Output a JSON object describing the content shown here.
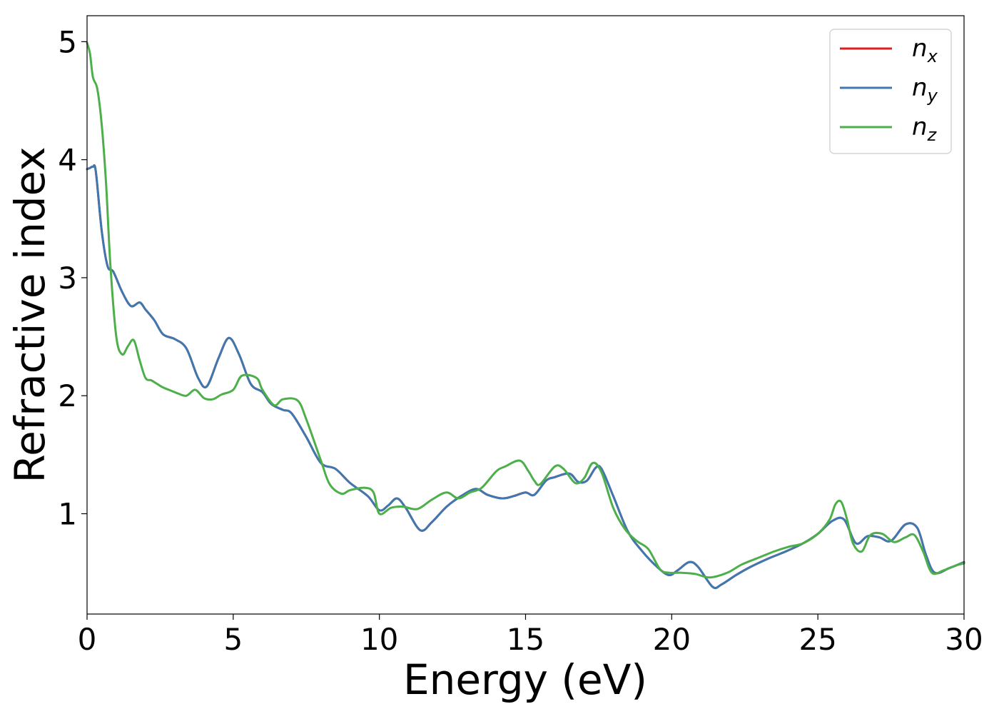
{
  "chart_data": {
    "type": "line",
    "xlabel": "Energy (eV)",
    "ylabel": "Refractive index",
    "xlim": [
      0,
      30
    ],
    "ylim": [
      0.15,
      5.22
    ],
    "xticks": [
      0,
      5,
      10,
      15,
      20,
      25,
      30
    ],
    "yticks": [
      1,
      2,
      3,
      4,
      5
    ],
    "grid": false,
    "legend_position": "top-right",
    "series": [
      {
        "name": "n",
        "subscript": "x",
        "color": "#e41a1c",
        "x": [
          0,
          0.1,
          0.2,
          0.3,
          0.5,
          0.7,
          0.9,
          1.2,
          1.5,
          1.8,
          2.0,
          2.3,
          2.6,
          3.0,
          3.4,
          3.8,
          4.1,
          4.5,
          4.85,
          5.2,
          5.6,
          6.0,
          6.3,
          6.7,
          7.0,
          7.5,
          8.0,
          8.5,
          9.0,
          9.6,
          10.0,
          10.3,
          10.6,
          10.9,
          11.4,
          11.8,
          12.3,
          12.8,
          13.3,
          13.7,
          14.2,
          14.6,
          15.0,
          15.3,
          15.7,
          16.0,
          16.5,
          16.8,
          17.1,
          17.4,
          17.6,
          18.0,
          18.5,
          19.0,
          19.5,
          19.9,
          20.2,
          20.6,
          20.9,
          21.4,
          21.7,
          22.2,
          22.7,
          23.3,
          23.9,
          24.5,
          25.0,
          25.5,
          25.9,
          26.3,
          26.7,
          27.1,
          27.5,
          28.0,
          28.4,
          28.7,
          29.0,
          29.5,
          30.0
        ],
        "y": [
          3.92,
          3.93,
          3.94,
          3.9,
          3.4,
          3.1,
          3.05,
          2.88,
          2.76,
          2.79,
          2.73,
          2.64,
          2.52,
          2.48,
          2.4,
          2.15,
          2.08,
          2.32,
          2.49,
          2.35,
          2.1,
          2.03,
          1.93,
          1.88,
          1.85,
          1.65,
          1.43,
          1.38,
          1.26,
          1.15,
          1.03,
          1.07,
          1.13,
          1.05,
          0.86,
          0.93,
          1.06,
          1.15,
          1.21,
          1.16,
          1.13,
          1.15,
          1.18,
          1.16,
          1.28,
          1.31,
          1.34,
          1.27,
          1.28,
          1.39,
          1.38,
          1.15,
          0.85,
          0.68,
          0.55,
          0.48,
          0.52,
          0.59,
          0.55,
          0.38,
          0.4,
          0.48,
          0.55,
          0.62,
          0.68,
          0.75,
          0.83,
          0.94,
          0.95,
          0.75,
          0.81,
          0.8,
          0.77,
          0.91,
          0.88,
          0.65,
          0.5,
          0.54,
          0.59
        ]
      },
      {
        "name": "n",
        "subscript": "y",
        "color": "#3d78b0",
        "x": [
          0,
          0.1,
          0.2,
          0.3,
          0.5,
          0.7,
          0.9,
          1.2,
          1.5,
          1.8,
          2.0,
          2.3,
          2.6,
          3.0,
          3.4,
          3.8,
          4.1,
          4.5,
          4.85,
          5.2,
          5.6,
          6.0,
          6.3,
          6.7,
          7.0,
          7.5,
          8.0,
          8.5,
          9.0,
          9.6,
          10.0,
          10.3,
          10.6,
          10.9,
          11.4,
          11.8,
          12.3,
          12.8,
          13.3,
          13.7,
          14.2,
          14.6,
          15.0,
          15.3,
          15.7,
          16.0,
          16.5,
          16.8,
          17.1,
          17.4,
          17.6,
          18.0,
          18.5,
          19.0,
          19.5,
          19.9,
          20.2,
          20.6,
          20.9,
          21.4,
          21.7,
          22.2,
          22.7,
          23.3,
          23.9,
          24.5,
          25.0,
          25.5,
          25.9,
          26.3,
          26.7,
          27.1,
          27.5,
          28.0,
          28.4,
          28.7,
          29.0,
          29.5,
          30.0
        ],
        "y": [
          3.92,
          3.93,
          3.94,
          3.9,
          3.4,
          3.1,
          3.05,
          2.88,
          2.76,
          2.79,
          2.73,
          2.64,
          2.52,
          2.48,
          2.4,
          2.15,
          2.08,
          2.32,
          2.49,
          2.35,
          2.1,
          2.03,
          1.93,
          1.88,
          1.85,
          1.65,
          1.43,
          1.38,
          1.26,
          1.15,
          1.03,
          1.07,
          1.13,
          1.05,
          0.86,
          0.93,
          1.06,
          1.15,
          1.21,
          1.16,
          1.13,
          1.15,
          1.18,
          1.16,
          1.28,
          1.31,
          1.34,
          1.27,
          1.28,
          1.39,
          1.38,
          1.15,
          0.85,
          0.68,
          0.55,
          0.48,
          0.52,
          0.59,
          0.55,
          0.38,
          0.4,
          0.48,
          0.55,
          0.62,
          0.68,
          0.75,
          0.83,
          0.94,
          0.95,
          0.75,
          0.81,
          0.8,
          0.77,
          0.91,
          0.88,
          0.65,
          0.5,
          0.54,
          0.59
        ]
      },
      {
        "name": "n",
        "subscript": "z",
        "color": "#4daf4a",
        "x": [
          0,
          0.1,
          0.2,
          0.35,
          0.5,
          0.65,
          0.8,
          1.0,
          1.2,
          1.4,
          1.6,
          1.8,
          2.0,
          2.2,
          2.4,
          2.6,
          2.9,
          3.1,
          3.4,
          3.7,
          4.0,
          4.3,
          4.6,
          5.0,
          5.3,
          5.8,
          6.0,
          6.4,
          6.7,
          7.2,
          7.5,
          8.0,
          8.3,
          8.7,
          9.0,
          9.5,
          9.8,
          10.0,
          10.4,
          10.8,
          11.3,
          11.8,
          12.3,
          12.7,
          13.1,
          13.5,
          14.0,
          14.3,
          14.8,
          15.1,
          15.3,
          15.5,
          16.0,
          16.3,
          16.7,
          17.0,
          17.3,
          17.6,
          18.0,
          18.4,
          18.8,
          19.2,
          19.6,
          19.9,
          20.3,
          20.8,
          21.3,
          21.9,
          22.4,
          23.0,
          23.5,
          24.0,
          24.5,
          25.0,
          25.4,
          25.6,
          25.8,
          26.0,
          26.2,
          26.5,
          26.8,
          27.2,
          27.6,
          28.0,
          28.3,
          28.6,
          28.9,
          29.3,
          29.7,
          30.0
        ],
        "y": [
          4.99,
          4.9,
          4.7,
          4.6,
          4.3,
          3.8,
          3.1,
          2.5,
          2.35,
          2.42,
          2.47,
          2.3,
          2.15,
          2.13,
          2.1,
          2.07,
          2.04,
          2.02,
          2.0,
          2.05,
          1.98,
          1.97,
          2.01,
          2.05,
          2.17,
          2.15,
          2.05,
          1.92,
          1.97,
          1.96,
          1.8,
          1.45,
          1.25,
          1.17,
          1.2,
          1.22,
          1.18,
          1.0,
          1.05,
          1.06,
          1.04,
          1.12,
          1.18,
          1.13,
          1.18,
          1.22,
          1.36,
          1.4,
          1.45,
          1.36,
          1.28,
          1.25,
          1.4,
          1.38,
          1.26,
          1.3,
          1.43,
          1.35,
          1.05,
          0.87,
          0.77,
          0.7,
          0.53,
          0.5,
          0.5,
          0.49,
          0.46,
          0.5,
          0.57,
          0.63,
          0.68,
          0.72,
          0.75,
          0.83,
          0.95,
          1.08,
          1.1,
          0.95,
          0.75,
          0.68,
          0.82,
          0.83,
          0.76,
          0.8,
          0.82,
          0.68,
          0.5,
          0.52,
          0.56,
          0.58
        ]
      }
    ]
  }
}
